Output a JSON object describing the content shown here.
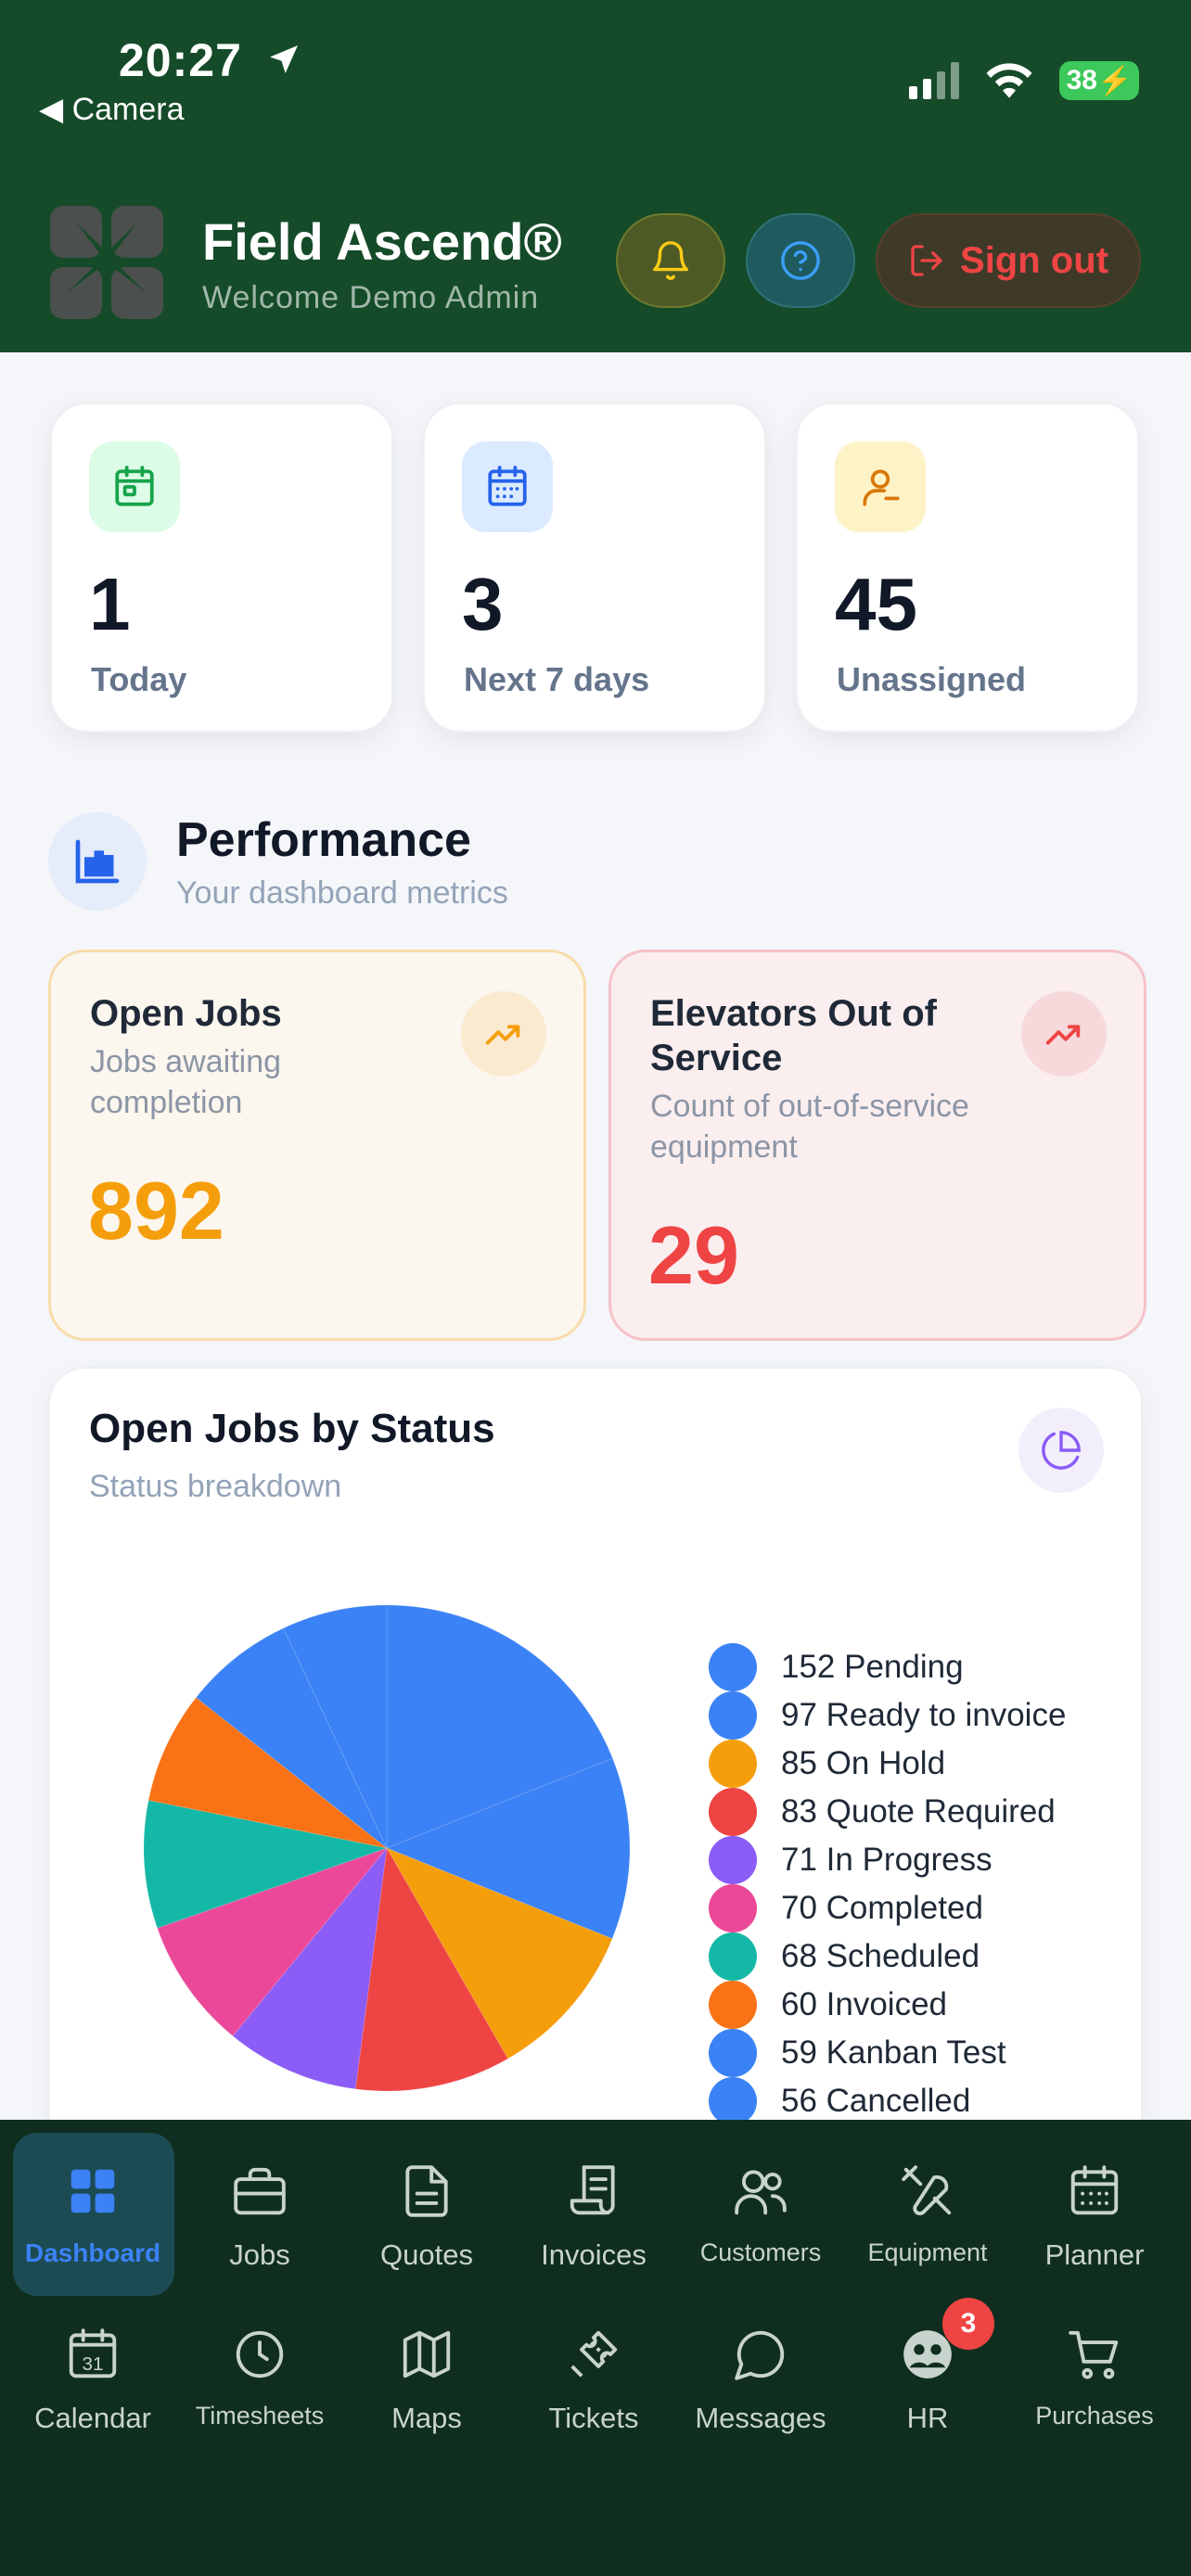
{
  "status_bar": {
    "time": "20:27",
    "back_label": "Camera",
    "battery": "38"
  },
  "header": {
    "title": "Field Ascend®",
    "subtitle": "Welcome Demo Admin",
    "sign_out_label": "Sign out"
  },
  "stats": [
    {
      "value": "1",
      "label": "Today",
      "icon": "calendar-icon",
      "icon_bg": "#dcfce7",
      "icon_color": "#16a34a"
    },
    {
      "value": "3",
      "label": "Next 7 days",
      "icon": "calendar-grid-icon",
      "icon_bg": "#dbeafe",
      "icon_color": "#2563eb"
    },
    {
      "value": "45",
      "label": "Unassigned",
      "icon": "user-minus-icon",
      "icon_bg": "#fef3c7",
      "icon_color": "#d97706"
    }
  ],
  "performance": {
    "title": "Performance",
    "subtitle": "Your dashboard metrics"
  },
  "metrics": [
    {
      "title": "Open Jobs",
      "description": "Jobs awaiting completion",
      "value": "892",
      "color": "#f59e0b"
    },
    {
      "title": "Elevators Out of Service",
      "description": "Count of out-of-service equipment",
      "value": "29",
      "color": "#ef4444"
    }
  ],
  "chart_card": {
    "title": "Open Jobs by Status",
    "subtitle": "Status breakdown"
  },
  "chart_data": {
    "type": "pie",
    "legend_position": "right",
    "slices": [
      {
        "label": "Pending",
        "value": 152,
        "color": "#3b82f6"
      },
      {
        "label": "Ready to invoice",
        "value": 97,
        "color": "#3b82f6"
      },
      {
        "label": "On Hold",
        "value": 85,
        "color": "#f59e0b"
      },
      {
        "label": "Quote Required",
        "value": 83,
        "color": "#ef4444"
      },
      {
        "label": "In Progress",
        "value": 71,
        "color": "#8b5cf6"
      },
      {
        "label": "Completed",
        "value": 70,
        "color": "#ec4899"
      },
      {
        "label": "Scheduled",
        "value": 68,
        "color": "#14b8a6"
      },
      {
        "label": "Invoiced",
        "value": 60,
        "color": "#f97316"
      },
      {
        "label": "Kanban Test",
        "value": 59,
        "color": "#3b82f6"
      },
      {
        "label": "Cancelled",
        "value": 56,
        "color": "#3b82f6"
      }
    ]
  },
  "nav": {
    "row1": [
      {
        "label": "Dashboard",
        "icon": "dashboard-icon"
      },
      {
        "label": "Jobs",
        "icon": "briefcase-icon"
      },
      {
        "label": "Quotes",
        "icon": "document-icon"
      },
      {
        "label": "Invoices",
        "icon": "receipt-icon"
      },
      {
        "label": "Customers",
        "icon": "users-icon"
      },
      {
        "label": "Equipment",
        "icon": "tools-icon"
      },
      {
        "label": "Planner",
        "icon": "planner-icon"
      }
    ],
    "row2": [
      {
        "label": "Calendar",
        "icon": "calendar-31-icon"
      },
      {
        "label": "Timesheets",
        "icon": "clock-icon"
      },
      {
        "label": "Maps",
        "icon": "map-icon"
      },
      {
        "label": "Tickets",
        "icon": "ticket-icon"
      },
      {
        "label": "Messages",
        "icon": "chat-icon"
      },
      {
        "label": "HR",
        "icon": "hr-icon"
      },
      {
        "label": "Purchases",
        "icon": "cart-icon"
      }
    ],
    "calendar_day": "31",
    "hr_badge": "3"
  }
}
